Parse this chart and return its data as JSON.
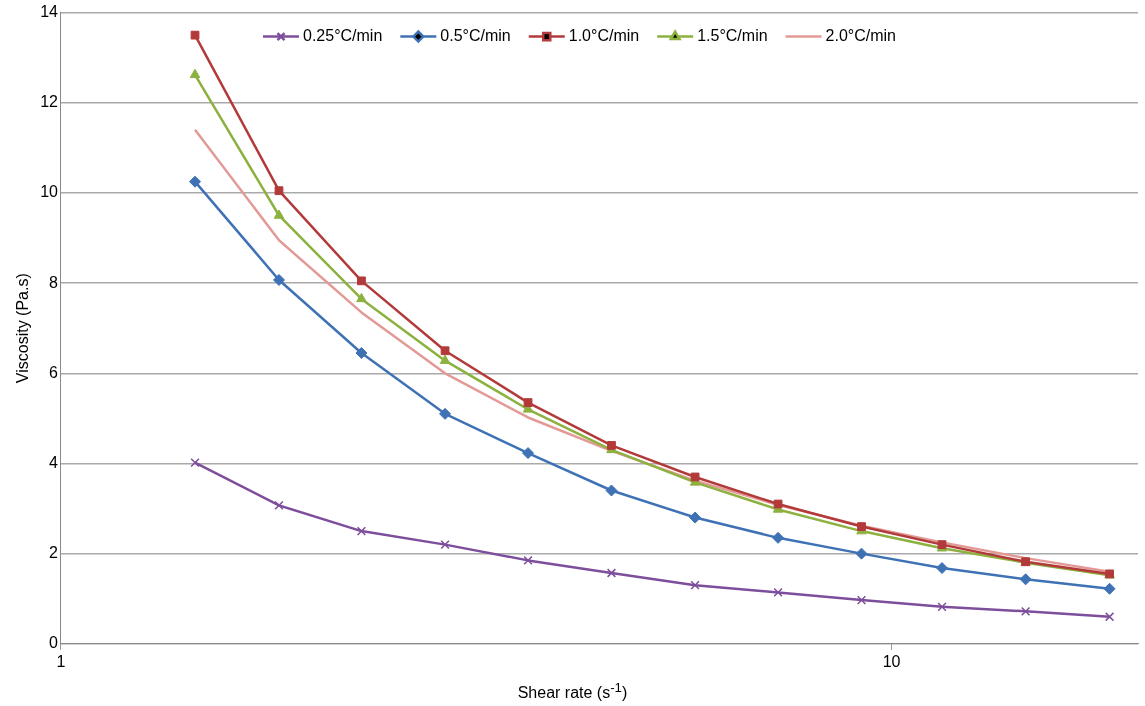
{
  "chart_data": {
    "type": "line",
    "xlabel": "Shear rate (s$^{-1}$)",
    "ylabel": "Viscosity (Pa.s)",
    "x": [
      1.45,
      1.83,
      2.3,
      2.9,
      3.65,
      4.6,
      5.8,
      7.3,
      9.2,
      11.5,
      14.5,
      18.3
    ],
    "xlim": [
      1,
      19.8
    ],
    "xticks": [
      1,
      10
    ],
    "log": "x",
    "ylim": [
      0,
      14
    ],
    "yticks": [
      0,
      2,
      4,
      6,
      8,
      10,
      12,
      14
    ],
    "grid": "y",
    "legend": "top",
    "series": [
      {
        "name": "0.25°C/min",
        "color": "#7d4e9b",
        "marker": "cross",
        "values": [
          4.02,
          3.07,
          2.5,
          2.2,
          1.85,
          1.57,
          1.3,
          1.14,
          0.97,
          0.82,
          0.72,
          0.6
        ]
      },
      {
        "name": "0.5°C/min",
        "color": "#3f72b5",
        "marker": "diamond",
        "values": [
          10.25,
          8.07,
          6.45,
          5.1,
          4.23,
          3.4,
          2.8,
          2.35,
          2.0,
          1.68,
          1.43,
          1.22
        ]
      },
      {
        "name": "1.0°C/min",
        "color": "#b33a3a",
        "marker": "square",
        "values": [
          13.5,
          10.05,
          8.05,
          6.5,
          5.35,
          4.4,
          3.7,
          3.1,
          2.6,
          2.2,
          1.82,
          1.55
        ]
      },
      {
        "name": "1.5°C/min",
        "color": "#8cb13f",
        "marker": "triangle",
        "values": [
          12.62,
          9.5,
          7.65,
          6.28,
          5.2,
          4.3,
          3.58,
          2.98,
          2.5,
          2.12,
          1.8,
          1.52
        ]
      },
      {
        "name": "2.0°C/min",
        "color": "#e39a96",
        "marker": "none",
        "values": [
          11.4,
          8.95,
          7.35,
          6.0,
          5.02,
          4.28,
          3.62,
          3.08,
          2.62,
          2.25,
          1.9,
          1.6
        ]
      }
    ]
  }
}
